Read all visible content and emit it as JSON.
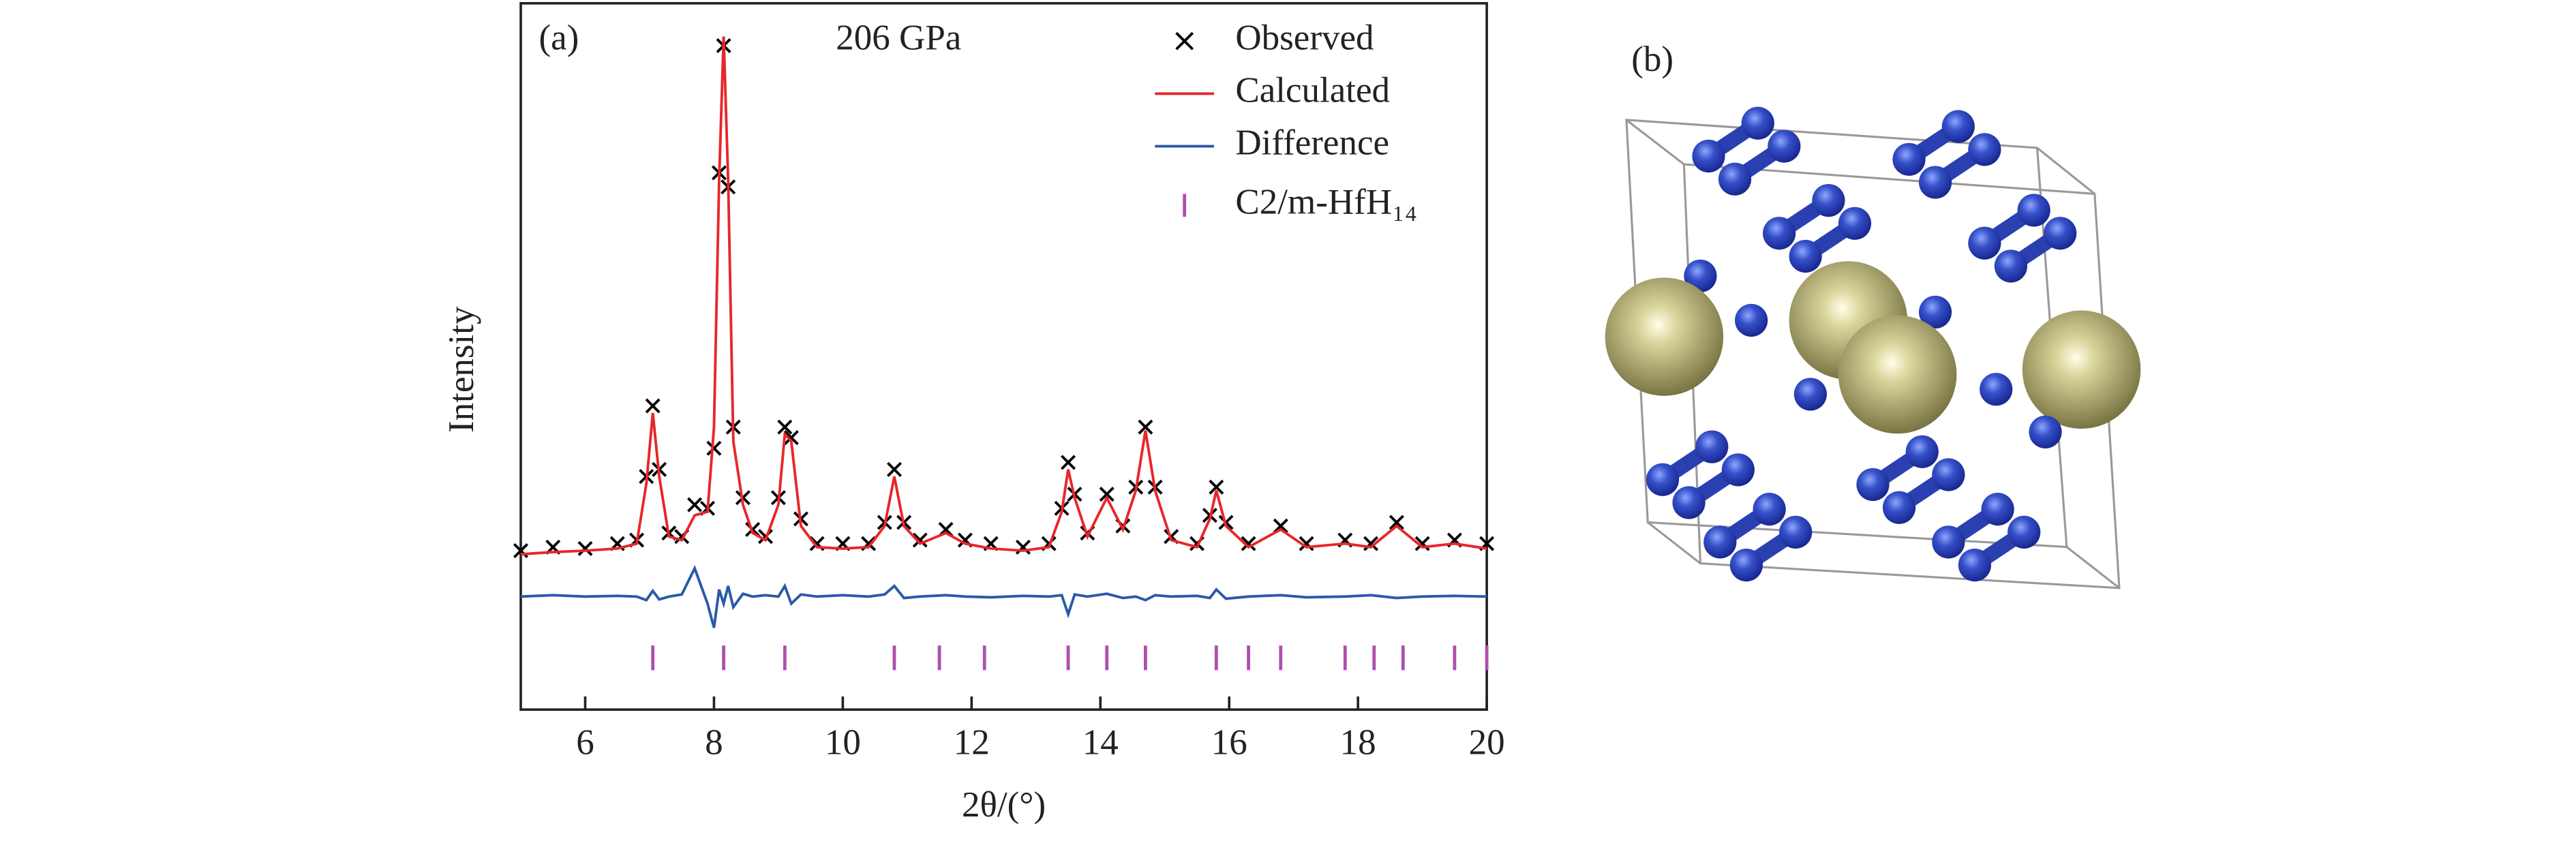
{
  "chart_data": {
    "type": "line",
    "panel_label": "(a)",
    "annotation": "206 GPa",
    "xlabel": "2θ/(°)",
    "ylabel": "Intensity",
    "xlim": [
      5,
      20
    ],
    "xticks": [
      6,
      8,
      10,
      12,
      14,
      16,
      18,
      20
    ],
    "ylim": [
      0,
      100
    ],
    "grid": false,
    "legend": "upper right",
    "x": [
      5,
      5.5,
      6,
      6.5,
      6.8,
      6.95,
      7.05,
      7.15,
      7.3,
      7.5,
      7.7,
      7.9,
      8.0,
      8.08,
      8.15,
      8.22,
      8.3,
      8.45,
      8.6,
      8.8,
      9.0,
      9.1,
      9.2,
      9.35,
      9.6,
      10.0,
      10.4,
      10.65,
      10.8,
      10.95,
      11.2,
      11.6,
      11.9,
      12.3,
      12.8,
      13.2,
      13.4,
      13.5,
      13.6,
      13.8,
      14.1,
      14.35,
      14.55,
      14.7,
      14.85,
      15.1,
      15.5,
      15.7,
      15.8,
      15.95,
      16.3,
      16.8,
      17.2,
      17.8,
      18.2,
      18.6,
      19.0,
      19.5,
      20
    ],
    "series": [
      {
        "name": "Observed",
        "color": "#000000",
        "mode": "markers",
        "values": [
          22.5,
          23,
          22.8,
          23.5,
          24,
          33,
          43,
          34,
          25,
          24.5,
          29,
          28.5,
          37,
          76,
          94,
          74,
          40,
          30,
          25.5,
          24.5,
          30,
          40,
          38.5,
          27,
          23.5,
          23.5,
          23.5,
          26.5,
          34,
          26.5,
          24,
          25.5,
          24,
          23.5,
          23,
          23.5,
          28.5,
          35,
          30.5,
          25,
          30.5,
          26,
          31.5,
          40,
          31.5,
          24.5,
          23.5,
          27.5,
          31.5,
          26.5,
          23.5,
          26,
          23.5,
          24,
          23.5,
          26.5,
          23.5,
          24,
          23.5
        ]
      },
      {
        "name": "Calculated",
        "color": "#e8262a",
        "mode": "lines",
        "values": [
          22,
          22.3,
          22.5,
          22.8,
          23.5,
          32,
          42,
          33,
          24.5,
          24,
          27.5,
          28,
          40,
          75,
          95.3,
          75,
          38,
          29,
          25,
          24,
          29,
          39,
          38,
          26,
          23,
          22.8,
          23,
          26,
          33,
          26,
          23.5,
          25,
          23.5,
          22.8,
          22.5,
          23,
          28,
          34,
          30,
          24.5,
          30,
          25.5,
          31,
          39.5,
          31,
          24,
          23,
          27,
          31,
          26,
          23,
          25.5,
          23,
          23.5,
          23,
          26,
          23,
          23.5,
          22.8
        ]
      },
      {
        "name": "Difference",
        "color": "#2a5aa8",
        "mode": "lines",
        "values": [
          16,
          16.2,
          16,
          16.1,
          16,
          15.5,
          16.8,
          15.6,
          16,
          16.3,
          20,
          15,
          11.6,
          17,
          15,
          17.5,
          14.5,
          16.4,
          16,
          16.2,
          16,
          17.5,
          15,
          16.3,
          16,
          16.2,
          16,
          16.3,
          17.5,
          15.8,
          16,
          16.2,
          16,
          15.9,
          16.1,
          16,
          16.2,
          13.5,
          16.3,
          16,
          16.4,
          15.8,
          16,
          15.5,
          16.2,
          16,
          16.1,
          15.8,
          17,
          15.7,
          16,
          16.2,
          15.9,
          16,
          16.2,
          15.8,
          16,
          16.1,
          16
        ]
      },
      {
        "name": "C2/m-HfH₁₄",
        "color": "#b04fae",
        "mode": "ticks",
        "positions": [
          7.05,
          8.15,
          9.1,
          10.8,
          11.5,
          12.2,
          13.5,
          14.1,
          14.7,
          15.8,
          16.3,
          16.8,
          17.8,
          18.25,
          18.7,
          19.5,
          20
        ]
      }
    ]
  },
  "structure": {
    "panel_label": "(b)"
  }
}
